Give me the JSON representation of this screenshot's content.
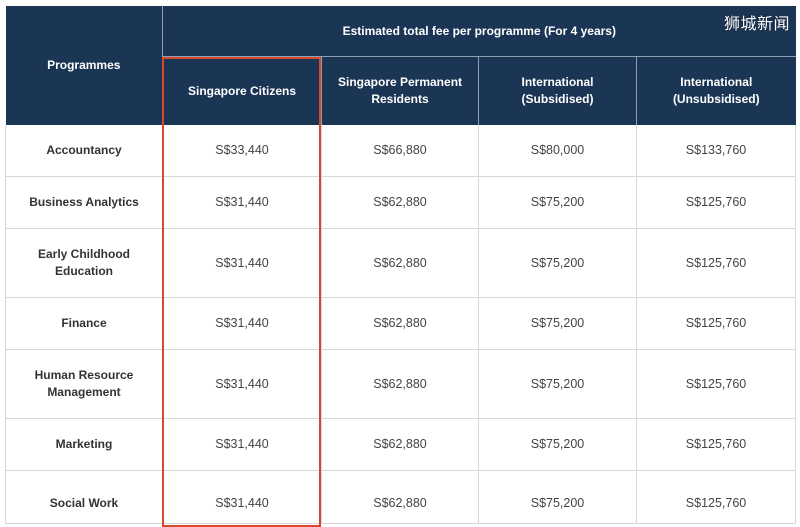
{
  "header": {
    "programmes_label": "Programmes",
    "group_label": "Estimated total fee per programme (For 4 years)",
    "columns": [
      "Singapore Citizens",
      "Singapore Permanent Residents",
      "International (Subsidised)",
      "International (Unsubsidised)"
    ]
  },
  "rows": [
    {
      "programme": "Accountancy",
      "fees": [
        "S$33,440",
        "S$66,880",
        "S$80,000",
        "S$133,760"
      ]
    },
    {
      "programme": "Business Analytics",
      "fees": [
        "S$31,440",
        "S$62,880",
        "S$75,200",
        "S$125,760"
      ]
    },
    {
      "programme": "Early Childhood Education",
      "fees": [
        "S$31,440",
        "S$62,880",
        "S$75,200",
        "S$125,760"
      ]
    },
    {
      "programme": "Finance",
      "fees": [
        "S$31,440",
        "S$62,880",
        "S$75,200",
        "S$125,760"
      ]
    },
    {
      "programme": "Human Resource Management",
      "fees": [
        "S$31,440",
        "S$62,880",
        "S$75,200",
        "S$125,760"
      ]
    },
    {
      "programme": "Marketing",
      "fees": [
        "S$31,440",
        "S$62,880",
        "S$75,200",
        "S$125,760"
      ]
    },
    {
      "programme": "Social Work",
      "fees": [
        "S$31,440",
        "S$62,880",
        "S$75,200",
        "S$125,760"
      ]
    }
  ],
  "watermark": "狮城新闻",
  "colors": {
    "header_bg": "#1b3554",
    "highlight_border": "#d9472c"
  }
}
